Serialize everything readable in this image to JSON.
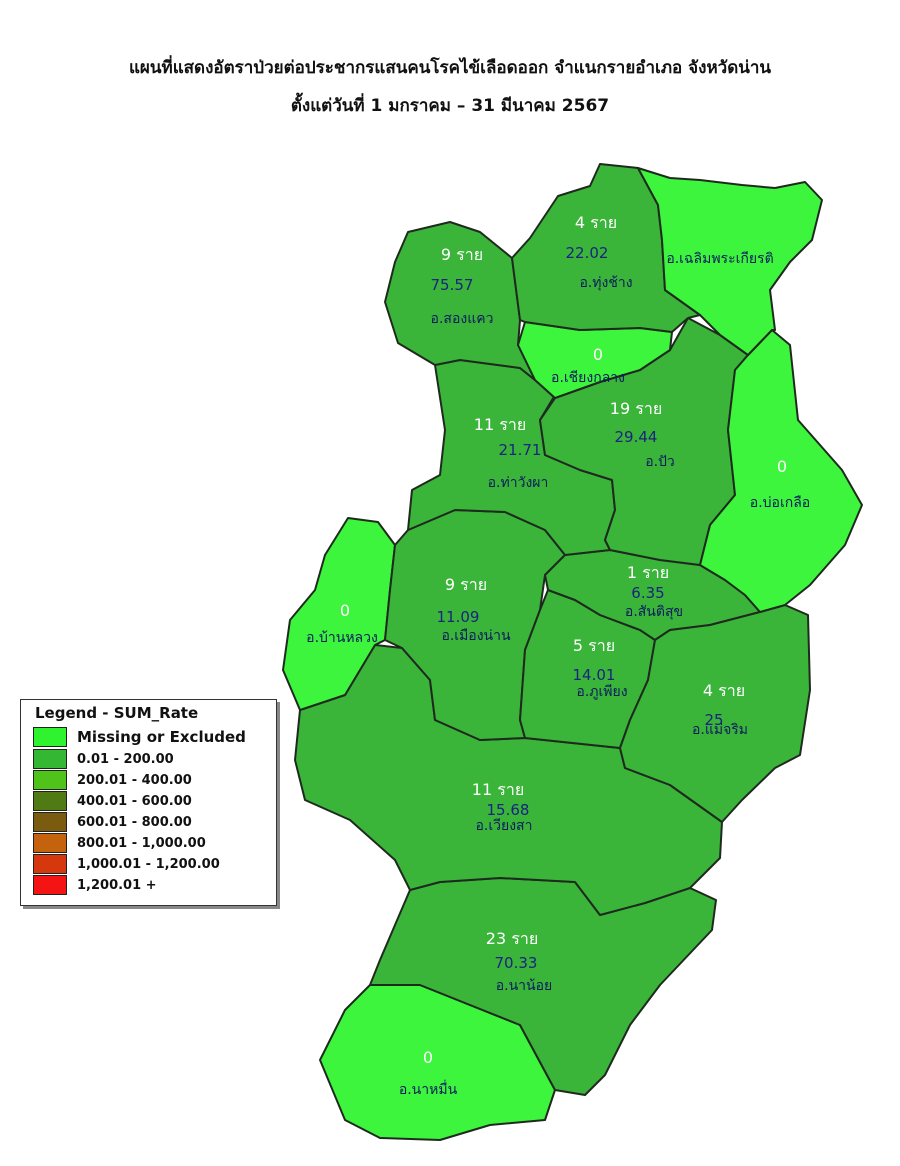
{
  "title_line1": "แผนที่แสดงอัตราป่วยต่อประชากรแสนคนโรคไข้เลือดออก จำแนกรายอำเภอ จังหวัดน่าน",
  "title_line2": "ตั้งแต่วันที่ 1 มกราคม – 31 มีนาคม 2567",
  "colors": {
    "missing": "#3df53d",
    "class1": "#3ab53a",
    "border": "#1f2a1f"
  },
  "legend": {
    "title": "Legend - SUM_Rate",
    "items": [
      {
        "label": "Missing or Excluded",
        "color": "#2ef32e"
      },
      {
        "label": "0.01 - 200.00",
        "color": "#34b834"
      },
      {
        "label": "200.01 - 400.00",
        "color": "#4fc31a"
      },
      {
        "label": "400.01 - 600.00",
        "color": "#4f7a14"
      },
      {
        "label": "600.01 - 800.00",
        "color": "#7a5c10"
      },
      {
        "label": "800.01 - 1,000.00",
        "color": "#c4620d"
      },
      {
        "label": "1,000.01 - 1,200.00",
        "color": "#d4380c"
      },
      {
        "label": "1,200.01 +",
        "color": "#f41414"
      }
    ]
  },
  "districts": [
    {
      "id": "songkhwae",
      "cases": "9 ราย",
      "rate": "75.57",
      "name": "อ.สองแคว",
      "class": "class1"
    },
    {
      "id": "thungchang",
      "cases": "4 ราย",
      "rate": "22.02",
      "name": "อ.ทุ่งช้าง",
      "class": "class1"
    },
    {
      "id": "chaloemphrakiat",
      "cases": "",
      "rate": "",
      "name": "อ.เฉลิมพระเกียรติ",
      "class": "missing"
    },
    {
      "id": "chiangklang",
      "cases": "0",
      "rate": "",
      "name": "อ.เชียงกลาง",
      "class": "missing"
    },
    {
      "id": "thawangpha",
      "cases": "11 ราย",
      "rate": "21.71",
      "name": "อ.ท่าวังผา",
      "class": "class1"
    },
    {
      "id": "pua",
      "cases": "19 ราย",
      "rate": "29.44",
      "name": "อ.ปัว",
      "class": "class1"
    },
    {
      "id": "bokluea",
      "cases": "0",
      "rate": "",
      "name": "อ.บ่อเกลือ",
      "class": "missing"
    },
    {
      "id": "banluang",
      "cases": "0",
      "rate": "",
      "name": "อ.บ้านหลวง",
      "class": "missing"
    },
    {
      "id": "muangnan",
      "cases": "9 ราย",
      "rate": "11.09",
      "name": "อ.เมืองน่าน",
      "class": "class1"
    },
    {
      "id": "santisuk",
      "cases": "1 ราย",
      "rate": "6.35",
      "name": "อ.สันติสุข",
      "class": "class1"
    },
    {
      "id": "phuphiang",
      "cases": "5 ราย",
      "rate": "14.01",
      "name": "อ.ภูเพียง",
      "class": "class1"
    },
    {
      "id": "maecharim",
      "cases": "4 ราย",
      "rate": "25",
      "name": "อ.แม่จริม",
      "class": "class1"
    },
    {
      "id": "wiangsa",
      "cases": "11 ราย",
      "rate": "15.68",
      "name": "อ.เวียงสา",
      "class": "class1"
    },
    {
      "id": "nanoi",
      "cases": "23 ราย",
      "rate": "70.33",
      "name": "อ.นาน้อย",
      "class": "class1"
    },
    {
      "id": "namuen",
      "cases": "0",
      "rate": "",
      "name": "อ.นาหมื่น",
      "class": "missing"
    }
  ]
}
